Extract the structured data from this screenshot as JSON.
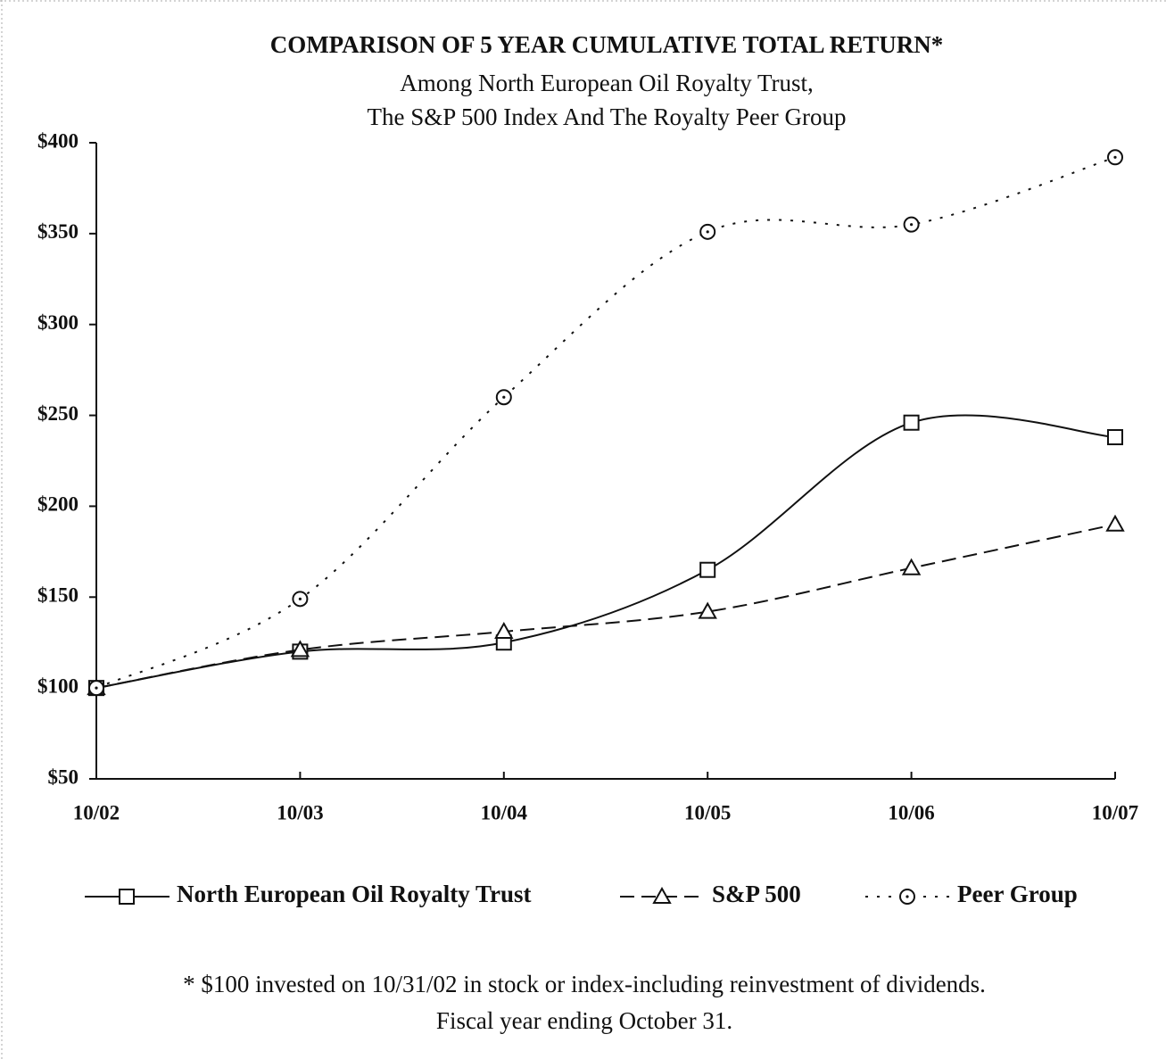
{
  "chart_data": {
    "type": "line",
    "title": "COMPARISON OF 5 YEAR CUMULATIVE TOTAL RETURN*",
    "subtitle": [
      "Among North European Oil Royalty Trust,",
      "The S&P 500 Index And The Royalty Peer Group"
    ],
    "categories": [
      "10/02",
      "10/03",
      "10/04",
      "10/05",
      "10/06",
      "10/07"
    ],
    "series": [
      {
        "name": "North European Oil Royalty Trust",
        "color": "#111111",
        "marker": "square",
        "line_style": "solid",
        "values": [
          100,
          120,
          125,
          165,
          246,
          238
        ]
      },
      {
        "name": "S&P 500",
        "color": "#111111",
        "marker": "triangle",
        "line_style": "dashed",
        "values": [
          100,
          121,
          131,
          142,
          166,
          190
        ]
      },
      {
        "name": "Peer Group",
        "color": "#111111",
        "marker": "circle",
        "line_style": "dotted",
        "values": [
          100,
          149,
          260,
          351,
          355,
          392
        ]
      }
    ],
    "ylim": [
      50,
      400
    ],
    "yticks": [
      {
        "value": 50,
        "label": "$50"
      },
      {
        "value": 100,
        "label": "$100"
      },
      {
        "value": 150,
        "label": "$150"
      },
      {
        "value": 200,
        "label": "$200"
      },
      {
        "value": 250,
        "label": "$250"
      },
      {
        "value": 300,
        "label": "$300"
      },
      {
        "value": 350,
        "label": "$350"
      },
      {
        "value": 400,
        "label": "$400"
      }
    ],
    "footnote": [
      "* $100 invested on 10/31/02 in stock or index-including reinvestment of dividends.",
      "Fiscal year ending October 31."
    ]
  }
}
